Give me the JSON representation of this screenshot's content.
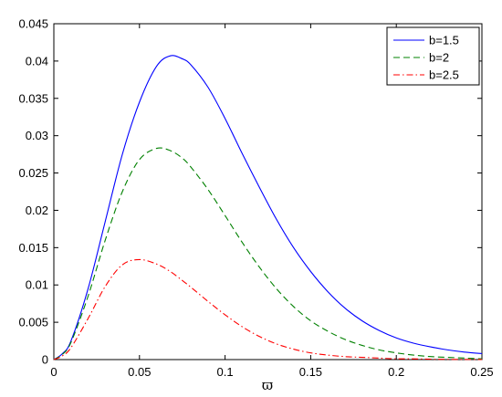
{
  "chart_data": {
    "type": "line",
    "title": "",
    "xlabel": "ϖ",
    "ylabel": "",
    "xlim": [
      0,
      0.25
    ],
    "ylim": [
      0,
      0.045
    ],
    "grid": false,
    "legend_position": "top-right",
    "x_ticks": [
      "0",
      "0.05",
      "0.1",
      "0.15",
      "0.2",
      "0.25"
    ],
    "y_ticks": [
      "0",
      "0.005",
      "0.01",
      "0.015",
      "0.02",
      "0.025",
      "0.03",
      "0.035",
      "0.04",
      "0.045"
    ],
    "x": [
      0,
      0.005,
      0.01,
      0.02,
      0.03,
      0.04,
      0.05,
      0.06,
      0.068,
      0.075,
      0.08,
      0.09,
      0.1,
      0.11,
      0.12,
      0.13,
      0.14,
      0.15,
      0.16,
      0.17,
      0.18,
      0.19,
      0.2,
      0.21,
      0.22,
      0.23,
      0.24,
      0.25
    ],
    "series": [
      {
        "name": "b=1.5",
        "color": "#0000ff",
        "dash": "solid",
        "values": [
          0,
          0.0008,
          0.0025,
          0.0095,
          0.0185,
          0.0275,
          0.0345,
          0.0393,
          0.0407,
          0.0403,
          0.0395,
          0.0365,
          0.0323,
          0.0276,
          0.0231,
          0.0188,
          0.015,
          0.0118,
          0.0091,
          0.0069,
          0.0052,
          0.0039,
          0.0029,
          0.0022,
          0.0017,
          0.0013,
          0.001,
          0.0008
        ]
      },
      {
        "name": "b=2",
        "color": "#008000",
        "dash": "dashed",
        "values": [
          0,
          0.0007,
          0.0023,
          0.0085,
          0.016,
          0.0225,
          0.0268,
          0.0283,
          0.028,
          0.027,
          0.0258,
          0.0228,
          0.0193,
          0.0157,
          0.0124,
          0.0095,
          0.0071,
          0.0052,
          0.0038,
          0.0027,
          0.0019,
          0.0013,
          0.0009,
          0.0006,
          0.0004,
          0.0003,
          0.0002,
          0.0001
        ]
      },
      {
        "name": "b=2.5",
        "color": "#ff0000",
        "dash": "dashdot",
        "values": [
          0,
          0.0005,
          0.0016,
          0.0055,
          0.0098,
          0.0127,
          0.0134,
          0.0128,
          0.0118,
          0.0106,
          0.0097,
          0.0078,
          0.006,
          0.0044,
          0.0031,
          0.0021,
          0.0014,
          0.0009,
          0.0006,
          0.0004,
          0.0003,
          0.0002,
          0.0001,
          0.0001,
          5e-05,
          3e-05,
          2e-05,
          1e-05
        ]
      }
    ]
  }
}
